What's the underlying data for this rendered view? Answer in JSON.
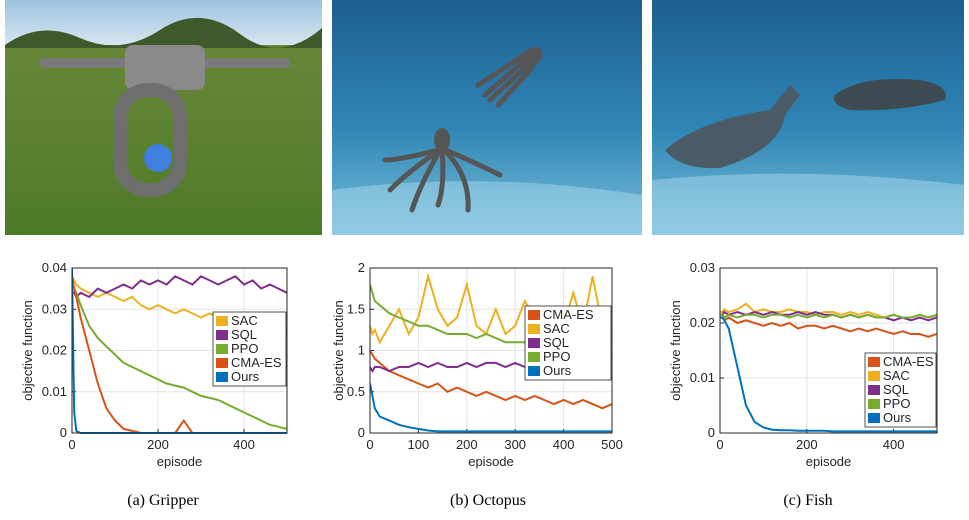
{
  "chart_data": [
    {
      "type": "line",
      "caption": "(a) Gripper",
      "xlabel": "episode",
      "ylabel": "objective function",
      "xlim": [
        0,
        500
      ],
      "xticks": [
        0,
        200,
        400
      ],
      "ylim": [
        0,
        0.04
      ],
      "yticks": [
        0,
        0.01,
        0.02,
        0.03,
        0.04
      ],
      "grid": true,
      "legend": "right",
      "x": [
        0,
        5,
        10,
        20,
        40,
        60,
        80,
        100,
        120,
        140,
        160,
        180,
        200,
        220,
        240,
        260,
        280,
        300,
        320,
        340,
        360,
        380,
        400,
        420,
        440,
        460,
        480,
        500
      ],
      "series": [
        {
          "name": "SAC",
          "color": "#EDB120",
          "values": [
            0.038,
            0.037,
            0.036,
            0.035,
            0.034,
            0.033,
            0.034,
            0.033,
            0.032,
            0.033,
            0.031,
            0.03,
            0.031,
            0.03,
            0.029,
            0.03,
            0.029,
            0.028,
            0.029,
            0.028,
            0.029,
            0.027,
            0.028,
            0.028,
            0.027,
            0.028,
            0.026,
            0.025
          ]
        },
        {
          "name": "SQL",
          "color": "#7E2F8E",
          "values": [
            0.034,
            0.034,
            0.033,
            0.034,
            0.033,
            0.035,
            0.034,
            0.035,
            0.036,
            0.035,
            0.037,
            0.036,
            0.037,
            0.036,
            0.038,
            0.037,
            0.036,
            0.038,
            0.037,
            0.036,
            0.037,
            0.038,
            0.036,
            0.037,
            0.035,
            0.036,
            0.035,
            0.034
          ]
        },
        {
          "name": "PPO",
          "color": "#77AC30",
          "values": [
            0.036,
            0.035,
            0.034,
            0.031,
            0.026,
            0.023,
            0.021,
            0.019,
            0.017,
            0.016,
            0.015,
            0.014,
            0.013,
            0.012,
            0.0115,
            0.011,
            0.01,
            0.009,
            0.0085,
            0.008,
            0.007,
            0.006,
            0.005,
            0.004,
            0.003,
            0.002,
            0.0015,
            0.001
          ]
        },
        {
          "name": "CMA-ES",
          "color": "#D95319",
          "values": [
            0.038,
            0.035,
            0.033,
            0.028,
            0.02,
            0.012,
            0.006,
            0.003,
            0.001,
            0.0005,
            0,
            0,
            0,
            0,
            0,
            0.003,
            0,
            0,
            0,
            0,
            0,
            0,
            0,
            0,
            0,
            0,
            0,
            0
          ]
        },
        {
          "name": "Ours",
          "color": "#0072BD",
          "values": [
            0.04,
            0.005,
            0.0005,
            0,
            0,
            0,
            0,
            0,
            0,
            0,
            0,
            0,
            0,
            0,
            0,
            0,
            0,
            0,
            0,
            0,
            0,
            0,
            0,
            0,
            0,
            0,
            0,
            0
          ]
        }
      ]
    },
    {
      "type": "line",
      "caption": "(b) Octopus",
      "xlabel": "episode",
      "ylabel": "objective function",
      "xlim": [
        0,
        500
      ],
      "xticks": [
        0,
        100,
        200,
        300,
        400,
        500
      ],
      "ylim": [
        0,
        2
      ],
      "yticks": [
        0,
        0.5,
        1,
        1.5,
        2
      ],
      "grid": true,
      "legend": "upper right",
      "x": [
        0,
        5,
        10,
        20,
        40,
        60,
        80,
        100,
        120,
        140,
        160,
        180,
        200,
        220,
        240,
        260,
        280,
        300,
        320,
        340,
        360,
        380,
        400,
        420,
        440,
        460,
        480,
        500
      ],
      "series": [
        {
          "name": "CMA-ES",
          "color": "#D95319",
          "values": [
            1.0,
            0.95,
            0.9,
            0.85,
            0.75,
            0.7,
            0.65,
            0.6,
            0.55,
            0.6,
            0.5,
            0.55,
            0.5,
            0.45,
            0.5,
            0.45,
            0.4,
            0.45,
            0.4,
            0.45,
            0.4,
            0.35,
            0.4,
            0.35,
            0.4,
            0.35,
            0.3,
            0.35
          ]
        },
        {
          "name": "SAC",
          "color": "#EDB120",
          "values": [
            1.3,
            1.2,
            1.25,
            1.1,
            1.3,
            1.5,
            1.2,
            1.4,
            1.9,
            1.5,
            1.3,
            1.4,
            1.8,
            1.3,
            1.2,
            1.5,
            1.2,
            1.3,
            1.6,
            1.4,
            1.2,
            1.5,
            1.3,
            1.7,
            1.3,
            1.9,
            1.3,
            1.2
          ]
        },
        {
          "name": "SQL",
          "color": "#7E2F8E",
          "values": [
            0.8,
            0.75,
            0.8,
            0.8,
            0.75,
            0.8,
            0.8,
            0.85,
            0.8,
            0.85,
            0.8,
            0.8,
            0.85,
            0.8,
            0.85,
            0.85,
            0.8,
            0.85,
            0.8,
            0.85,
            0.85,
            0.9,
            0.85,
            0.9,
            0.9,
            0.85,
            0.9,
            0.9
          ]
        },
        {
          "name": "PPO",
          "color": "#77AC30",
          "values": [
            1.8,
            1.7,
            1.6,
            1.55,
            1.45,
            1.4,
            1.35,
            1.3,
            1.3,
            1.25,
            1.2,
            1.2,
            1.2,
            1.15,
            1.2,
            1.15,
            1.1,
            1.1,
            1.1,
            1.12,
            1.1,
            1.15,
            1.12,
            1.15,
            1.12,
            1.15,
            1.15,
            1.15
          ]
        },
        {
          "name": "Ours",
          "color": "#0072BD",
          "values": [
            0.6,
            0.45,
            0.3,
            0.2,
            0.15,
            0.1,
            0.07,
            0.05,
            0.03,
            0.02,
            0.02,
            0.02,
            0.02,
            0.02,
            0.02,
            0.02,
            0.02,
            0.02,
            0.02,
            0.02,
            0.02,
            0.02,
            0.02,
            0.02,
            0.02,
            0.02,
            0.02,
            0.02
          ]
        }
      ]
    },
    {
      "type": "line",
      "caption": "(c) Fish",
      "xlabel": "episode",
      "ylabel": "objective function",
      "xlim": [
        0,
        500
      ],
      "xticks": [
        0,
        200,
        400
      ],
      "ylim": [
        0,
        0.03
      ],
      "yticks": [
        0,
        0.01,
        0.02,
        0.03
      ],
      "grid": true,
      "legend": "lower right",
      "x": [
        0,
        5,
        10,
        20,
        40,
        60,
        80,
        100,
        120,
        140,
        160,
        180,
        200,
        220,
        240,
        260,
        280,
        300,
        320,
        340,
        360,
        380,
        400,
        420,
        440,
        460,
        480,
        500
      ],
      "series": [
        {
          "name": "CMA-ES",
          "color": "#D95319",
          "values": [
            0.021,
            0.021,
            0.0205,
            0.021,
            0.02,
            0.0205,
            0.02,
            0.0195,
            0.02,
            0.0195,
            0.02,
            0.019,
            0.0195,
            0.0195,
            0.019,
            0.0195,
            0.019,
            0.0185,
            0.019,
            0.0185,
            0.019,
            0.0185,
            0.018,
            0.0185,
            0.018,
            0.018,
            0.0175,
            0.018
          ]
        },
        {
          "name": "SAC",
          "color": "#EDB120",
          "values": [
            0.022,
            0.022,
            0.0225,
            0.022,
            0.0225,
            0.0235,
            0.022,
            0.0225,
            0.022,
            0.022,
            0.0225,
            0.022,
            0.022,
            0.0215,
            0.022,
            0.022,
            0.0215,
            0.022,
            0.0215,
            0.022,
            0.0215,
            0.021,
            0.0215,
            0.021,
            0.021,
            0.0215,
            0.021,
            0.0215
          ]
        },
        {
          "name": "SQL",
          "color": "#7E2F8E",
          "values": [
            0.0215,
            0.0215,
            0.022,
            0.0215,
            0.022,
            0.0215,
            0.022,
            0.0215,
            0.022,
            0.0215,
            0.0215,
            0.022,
            0.0215,
            0.022,
            0.0215,
            0.0215,
            0.021,
            0.0215,
            0.021,
            0.0215,
            0.021,
            0.021,
            0.0205,
            0.021,
            0.0205,
            0.021,
            0.0205,
            0.021
          ]
        },
        {
          "name": "PPO",
          "color": "#77AC30",
          "values": [
            0.0215,
            0.0215,
            0.021,
            0.0215,
            0.021,
            0.0215,
            0.0215,
            0.021,
            0.0215,
            0.0215,
            0.021,
            0.0215,
            0.021,
            0.0215,
            0.021,
            0.0215,
            0.021,
            0.0215,
            0.021,
            0.0215,
            0.021,
            0.021,
            0.0215,
            0.021,
            0.021,
            0.0215,
            0.021,
            0.0215
          ]
        },
        {
          "name": "Ours",
          "color": "#0072BD",
          "values": [
            0.021,
            0.021,
            0.0205,
            0.019,
            0.012,
            0.005,
            0.002,
            0.001,
            0.0006,
            0.0005,
            0.0005,
            0.0004,
            0.0004,
            0.0004,
            0.0004,
            0.0003,
            0.0003,
            0.0003,
            0.0003,
            0.0003,
            0.0003,
            0.0003,
            0.0003,
            0.0003,
            0.0003,
            0.0003,
            0.0003,
            0.0003
          ]
        }
      ]
    }
  ]
}
